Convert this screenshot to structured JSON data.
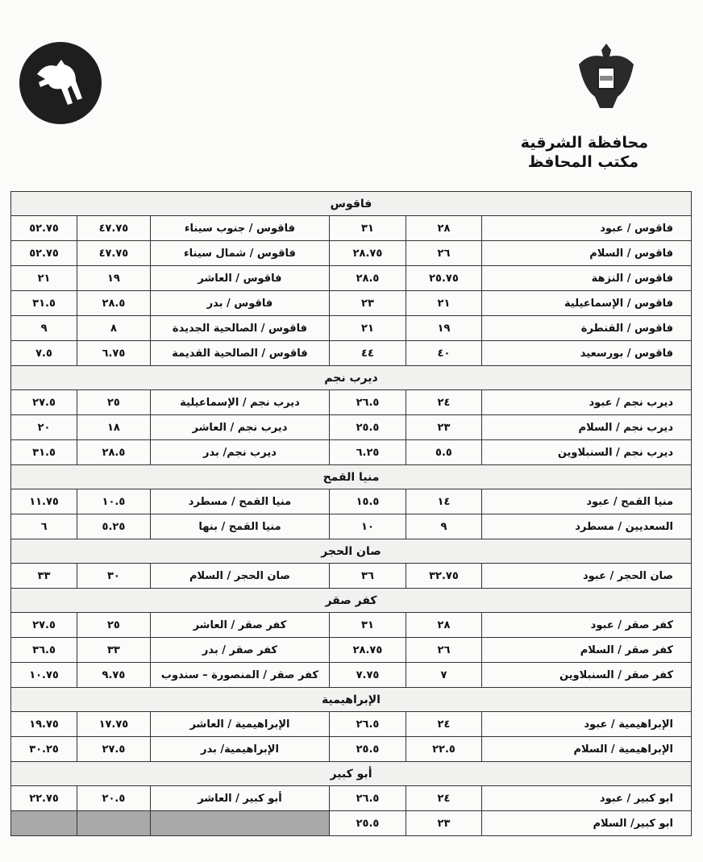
{
  "header": {
    "governorate": "محافظة الشرقية",
    "office": "مكتب المحافظ",
    "emblem_icon": "egypt-eagle-emblem",
    "logo_icon": "horse-logo"
  },
  "sections": [
    {
      "title": "فاقوس",
      "rows": [
        [
          "فاقوس / عبود",
          "٢٨",
          "٣١",
          "فاقوس / جنوب سيناء",
          "٤٧.٧٥",
          "٥٢.٧٥"
        ],
        [
          "فاقوس / السلام",
          "٢٦",
          "٢٨.٧٥",
          "فاقوس / شمال سيناء",
          "٤٧.٧٥",
          "٥٢.٧٥"
        ],
        [
          "فاقوس / النزهة",
          "٢٥.٧٥",
          "٢٨.٥",
          "فاقوس / العاشر",
          "١٩",
          "٢١"
        ],
        [
          "فاقوس / الإسماعيلية",
          "٢١",
          "٢٣",
          "فاقوس / بدر",
          "٢٨.٥",
          "٣١.٥"
        ],
        [
          "فاقوس / القنطرة",
          "١٩",
          "٢١",
          "فاقوس / الصالحية الجديدة",
          "٨",
          "٩"
        ],
        [
          "فاقوس / بورسعيد",
          "٤٠",
          "٤٤",
          "فاقوس / الصالحية القديمة",
          "٦.٧٥",
          "٧.٥"
        ]
      ]
    },
    {
      "title": "ديرب نجم",
      "rows": [
        [
          "ديرب نجم / عبود",
          "٢٤",
          "٢٦.٥",
          "ديرب نجم / الإسماعيلية",
          "٢٥",
          "٢٧.٥"
        ],
        [
          "ديرب نجم / السلام",
          "٢٣",
          "٢٥.٥",
          "ديرب نجم / العاشر",
          "١٨",
          "٢٠"
        ],
        [
          "ديرب نجم / السنبلاوين",
          "٥.٥",
          "٦.٢٥",
          "ديرب نجم/ بدر",
          "٢٨.٥",
          "٣١.٥"
        ]
      ]
    },
    {
      "title": "منيا القمح",
      "rows": [
        [
          "منيا القمح / عبود",
          "١٤",
          "١٥.٥",
          "منيا القمح / مسطرد",
          "١٠.٥",
          "١١.٧٥"
        ],
        [
          "السعديين / مسطرد",
          "٩",
          "١٠",
          "منيا القمح / بنها",
          "٥.٢٥",
          "٦"
        ]
      ]
    },
    {
      "title": "صان الحجر",
      "rows": [
        [
          "صان الحجر / عبود",
          "٣٢.٧٥",
          "٣٦",
          "صان الحجر / السلام",
          "٣٠",
          "٣٣"
        ]
      ]
    },
    {
      "title": "كفر صقر",
      "rows": [
        [
          "كفر صقر / عبود",
          "٢٨",
          "٣١",
          "كفر صقر / العاشر",
          "٢٥",
          "٢٧.٥"
        ],
        [
          "كفر صقر / السلام",
          "٢٦",
          "٢٨.٧٥",
          "كفر صقر / بدر",
          "٣٣",
          "٣٦.٥"
        ],
        [
          "كفر صقر / السنبلاوين",
          "٧",
          "٧.٧٥",
          "كفر صقر / المنصورة – سندوب",
          "٩.٧٥",
          "١٠.٧٥"
        ]
      ]
    },
    {
      "title": "الإبراهيمية",
      "rows": [
        [
          "الإبراهيمية / عبود",
          "٢٤",
          "٢٦.٥",
          "الإبراهيمية / العاشر",
          "١٧.٧٥",
          "١٩.٧٥"
        ],
        [
          "الإبراهيمية / السلام",
          "٢٢.٥",
          "٢٥.٥",
          "الإبراهيمية/ بدر",
          "٢٧.٥",
          "٣٠.٢٥"
        ]
      ]
    },
    {
      "title": "أبو كبير",
      "rows": [
        [
          "ابو كبير / عبود",
          "٢٤",
          "٢٦.٥",
          "أبو كبير / العاشر",
          "٢٠.٥",
          "٢٢.٧٥"
        ],
        [
          "ابو كبير/ السلام",
          "٢٣",
          "٢٥.٥",
          "",
          "",
          ""
        ]
      ]
    }
  ]
}
